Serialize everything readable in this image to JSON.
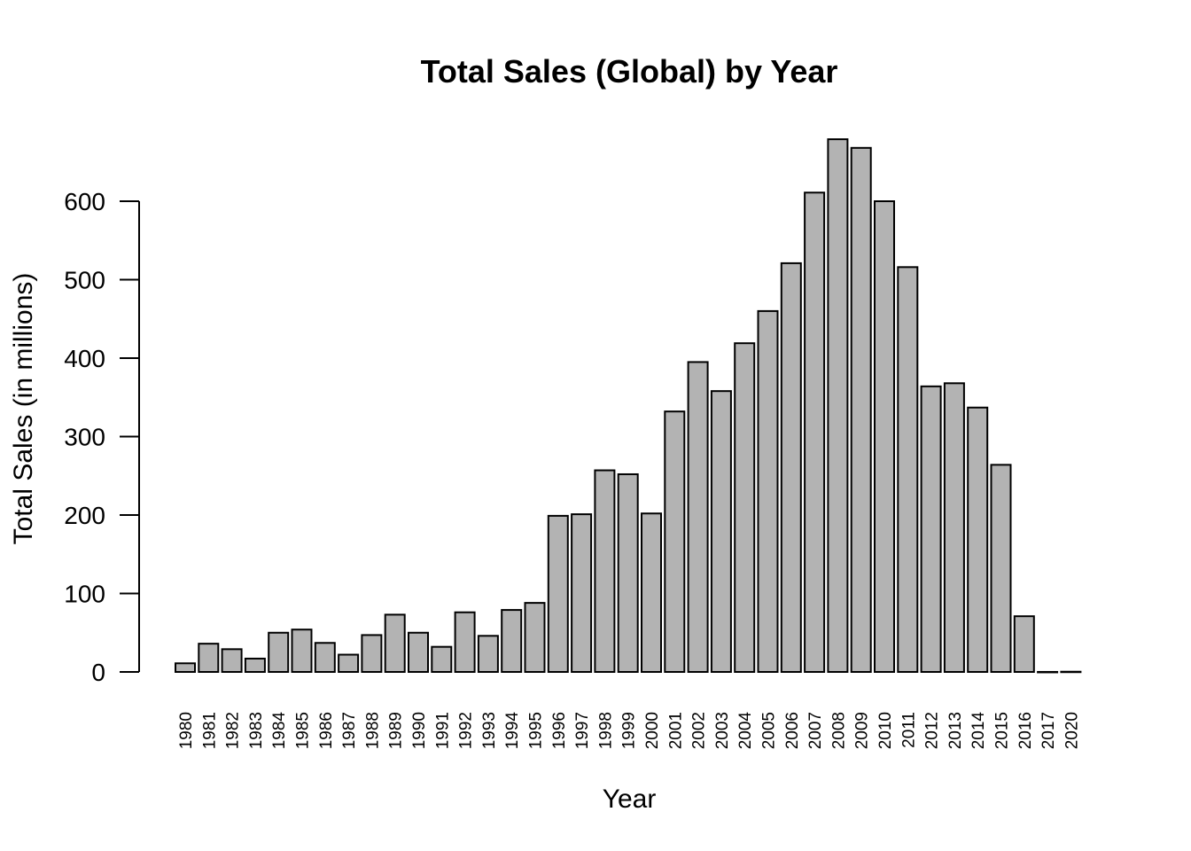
{
  "chart_data": {
    "type": "bar",
    "title": "Total Sales (Global) by Year",
    "xlabel": "Year",
    "ylabel": "Total Sales (in millions)",
    "ylim": [
      0,
      680
    ],
    "yticks": [
      0,
      100,
      200,
      300,
      400,
      500,
      600
    ],
    "categories": [
      "1980",
      "1981",
      "1982",
      "1983",
      "1984",
      "1985",
      "1986",
      "1987",
      "1988",
      "1989",
      "1990",
      "1991",
      "1992",
      "1993",
      "1994",
      "1995",
      "1996",
      "1997",
      "1998",
      "1999",
      "2000",
      "2001",
      "2002",
      "2003",
      "2004",
      "2005",
      "2006",
      "2007",
      "2008",
      "2009",
      "2010",
      "2011",
      "2012",
      "2013",
      "2014",
      "2015",
      "2016",
      "2017",
      "2020"
    ],
    "values": [
      11,
      36,
      29,
      17,
      50,
      54,
      37,
      22,
      47,
      73,
      50,
      32,
      76,
      46,
      79,
      88,
      199,
      201,
      257,
      252,
      202,
      332,
      395,
      358,
      419,
      460,
      521,
      611,
      679,
      668,
      600,
      516,
      364,
      368,
      337,
      264,
      71,
      0.05,
      0.3
    ],
    "bar_color": "#b3b3b3",
    "edge_color": "#000000",
    "grid": false,
    "legend": null
  }
}
